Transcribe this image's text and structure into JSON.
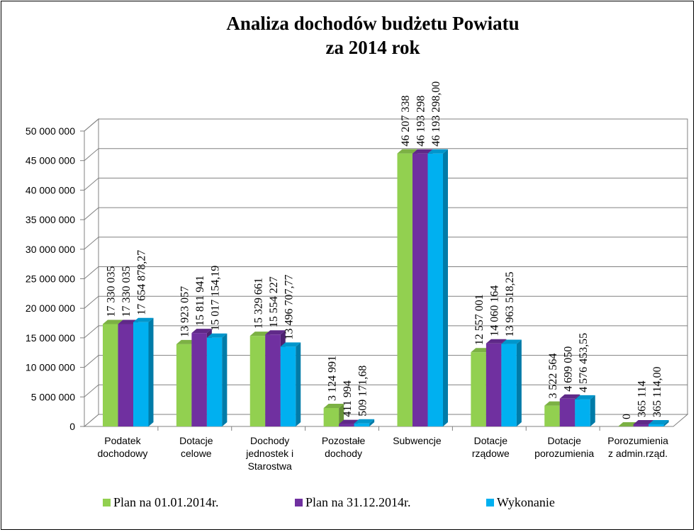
{
  "chart_data": {
    "type": "bar",
    "title": [
      "Analiza dochodów budżetu Powiatu",
      "za 2014 rok"
    ],
    "ylim": [
      0,
      50000000
    ],
    "yticks": [
      0,
      5000000,
      10000000,
      15000000,
      20000000,
      25000000,
      30000000,
      35000000,
      40000000,
      45000000,
      50000000
    ],
    "ytick_labels": [
      "0",
      "5 000 000",
      "10 000 000",
      "15 000 000",
      "20 000 000",
      "25 000 000",
      "30 000 000",
      "35 000 000",
      "40 000 000",
      "45 000 000",
      "50 000 000"
    ],
    "grid": true,
    "legend_position": "bottom",
    "categories": [
      [
        "Podatek",
        "dochodowy"
      ],
      [
        "Dotacje",
        "celowe"
      ],
      [
        "Dochody",
        "jednostek i",
        "Starostwa"
      ],
      [
        "Pozostałe",
        "dochody"
      ],
      [
        "Subwencje"
      ],
      [
        "Dotacje",
        "rządowe"
      ],
      [
        "Dotacje",
        "porozumienia"
      ],
      [
        "Porozumienia",
        "z admin.rząd."
      ]
    ],
    "series": [
      {
        "name": "Plan na 01.01.2014r.",
        "color": "#92d050",
        "values": [
          17330035,
          13923057,
          15329661,
          3124991,
          46207338,
          12557001,
          3522564,
          0
        ],
        "labels": [
          "17 330 035",
          "13 923 057",
          "15 329 661",
          "3 124 991",
          "46 207 338",
          "12 557 001",
          "3 522 564",
          "0"
        ]
      },
      {
        "name": "Plan na 31.12.2014r.",
        "color": "#7030a0",
        "values": [
          17330035,
          15811941,
          15554227,
          411994,
          46193298,
          14060164,
          4699050,
          365114
        ],
        "labels": [
          "17 330 035",
          "15 811 941",
          "15 554 227",
          "411 994",
          "46 193 298",
          "14 060 164",
          "4 699 050",
          "365 114"
        ]
      },
      {
        "name": "Wykonanie",
        "color": "#00b0f0",
        "values": [
          17654878.27,
          15017154.19,
          13496707.77,
          509171.68,
          46193298.0,
          13963518.25,
          4576453.55,
          365114.0
        ],
        "labels": [
          "17 654 878,27",
          "15 017 154,19",
          "13 496 707,77",
          "509 171,68",
          "46 193 298,00",
          "13 963 518,25",
          "4 576 453,55",
          "365 114,00"
        ]
      }
    ]
  }
}
